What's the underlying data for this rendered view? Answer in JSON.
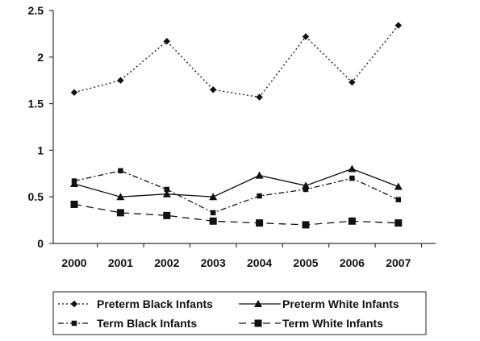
{
  "chart_data": {
    "type": "line",
    "title": "",
    "xlabel": "",
    "ylabel": "",
    "categories": [
      "2000",
      "2001",
      "2002",
      "2003",
      "2004",
      "2005",
      "2006",
      "2007"
    ],
    "ylim": [
      0,
      2.5
    ],
    "y_ticks": [
      "0",
      "0.5",
      "1",
      "1.5",
      "2",
      "2.5"
    ],
    "grid": false,
    "legend_position": "bottom",
    "series": [
      {
        "name": "Preterm Black Infants",
        "values": [
          1.62,
          1.75,
          2.17,
          1.65,
          1.57,
          2.22,
          1.73,
          2.34
        ],
        "marker": "diamond",
        "line_style": "dotted",
        "color": "#111111"
      },
      {
        "name": "Preterm White Infants",
        "values": [
          0.64,
          0.5,
          0.53,
          0.5,
          0.73,
          0.62,
          0.8,
          0.61
        ],
        "marker": "triangle",
        "line_style": "solid",
        "color": "#111111"
      },
      {
        "name": "Term Black Infants",
        "values": [
          0.67,
          0.78,
          0.58,
          0.33,
          0.51,
          0.58,
          0.7,
          0.47
        ],
        "marker": "small-square",
        "line_style": "dash-dot",
        "color": "#111111"
      },
      {
        "name": "Term White Infants",
        "values": [
          0.42,
          0.33,
          0.3,
          0.24,
          0.22,
          0.2,
          0.24,
          0.22
        ],
        "marker": "square",
        "line_style": "long-dash",
        "color": "#111111"
      }
    ]
  }
}
